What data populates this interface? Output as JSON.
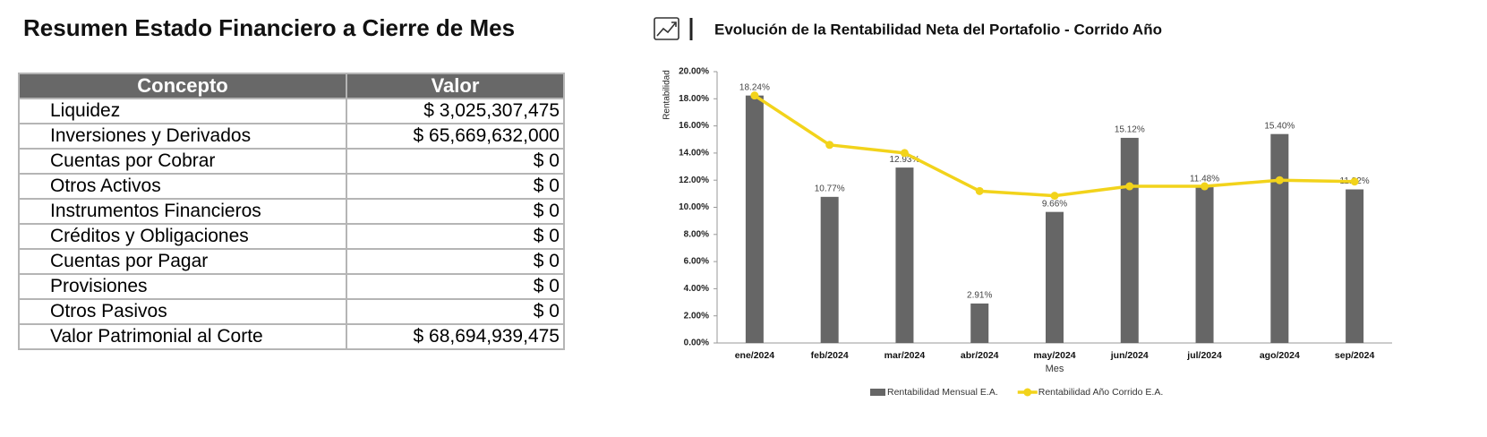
{
  "table": {
    "title": "Resumen Estado Financiero a Cierre de Mes",
    "headers": [
      "Concepto",
      "Valor"
    ],
    "rows": [
      [
        "Liquidez",
        "$ 3,025,307,475"
      ],
      [
        "Inversiones y Derivados",
        "$ 65,669,632,000"
      ],
      [
        "Cuentas por Cobrar",
        "$ 0"
      ],
      [
        "Otros Activos",
        "$ 0"
      ],
      [
        "Instrumentos Financieros",
        "$ 0"
      ],
      [
        "Créditos y Obligaciones",
        "$ 0"
      ],
      [
        "Cuentas por Pagar",
        "$ 0"
      ],
      [
        "Provisiones",
        "$ 0"
      ],
      [
        "Otros Pasivos",
        "$ 0"
      ],
      [
        "Valor Patrimonial al Corte",
        "$ 68,694,939,475"
      ]
    ]
  },
  "chart_data": {
    "type": "bar",
    "title": "Evolución de la Rentabilidad Neta del Portafolio - Corrido Año",
    "y_label": "Rentabilidad",
    "x_label": "Mes",
    "categories": [
      "ene/2024",
      "feb/2024",
      "mar/2024",
      "abr/2024",
      "may/2024",
      "jun/2024",
      "jul/2024",
      "ago/2024",
      "sep/2024"
    ],
    "series": [
      {
        "name": "Rentabilidad Mensual E.A.",
        "color": "#666666",
        "type": "bar",
        "values": [
          18.24,
          10.77,
          12.93,
          2.91,
          9.66,
          15.12,
          11.48,
          15.4,
          11.32
        ],
        "value_labels": [
          "18.24%",
          "10.77%",
          "12.93%",
          "2.91%",
          "9.66%",
          "15.12%",
          "11.48%",
          "15.40%",
          "11.32%"
        ]
      },
      {
        "name": "Rentabilidad Año Corrido E.A.",
        "color": "#f2d31b",
        "type": "line",
        "values": [
          18.24,
          14.6,
          14.0,
          11.2,
          10.85,
          11.55,
          11.55,
          12.0,
          11.9
        ]
      }
    ],
    "ylim": [
      0,
      20
    ],
    "yticks": [
      {
        "value": 0,
        "label": "0.00%"
      },
      {
        "value": 2,
        "label": "2.00%"
      },
      {
        "value": 4,
        "label": "4.00%"
      },
      {
        "value": 6,
        "label": "6.00%"
      },
      {
        "value": 8,
        "label": "8.00%"
      },
      {
        "value": 10,
        "label": "10.00%"
      },
      {
        "value": 12,
        "label": "12.00%"
      },
      {
        "value": 14,
        "label": "14.00%"
      },
      {
        "value": 16,
        "label": "16.00%"
      },
      {
        "value": 18,
        "label": "18.00%"
      },
      {
        "value": 20,
        "label": "20.00%"
      }
    ],
    "grid": false,
    "legend": "bottom"
  }
}
